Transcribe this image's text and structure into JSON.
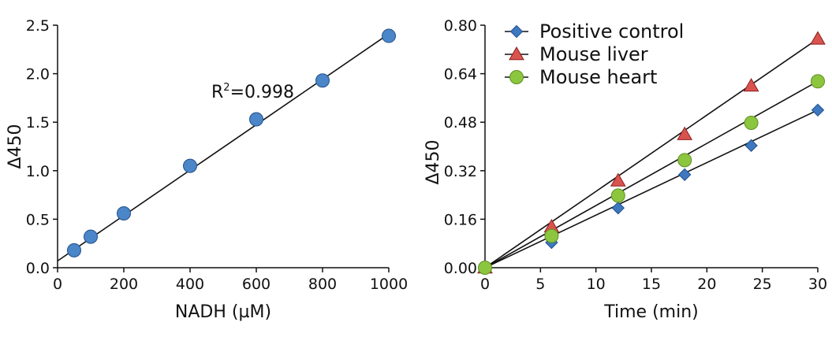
{
  "chart_data": [
    {
      "type": "scatter",
      "xlabel": "NADH (µM)",
      "ylabel": "Δ450",
      "xlim": [
        0,
        1000
      ],
      "ylim": [
        0,
        2.5
      ],
      "xticks": [
        0,
        200,
        400,
        600,
        800,
        1000
      ],
      "yticks": [
        0.0,
        0.5,
        1.0,
        1.5,
        2.0,
        2.5
      ],
      "xtick_labels": [
        "0",
        "200",
        "400",
        "600",
        "800",
        "1000"
      ],
      "ytick_labels": [
        "0.0",
        "0.5",
        "1.0",
        "1.5",
        "2.0",
        "2.5"
      ],
      "points": [
        {
          "x": 50,
          "y": 0.18
        },
        {
          "x": 100,
          "y": 0.32
        },
        {
          "x": 200,
          "y": 0.56
        },
        {
          "x": 400,
          "y": 1.05
        },
        {
          "x": 600,
          "y": 1.53
        },
        {
          "x": 800,
          "y": 1.93
        },
        {
          "x": 1000,
          "y": 2.39
        }
      ],
      "fit": {
        "intercept": 0.07,
        "slope": 0.00234
      },
      "annotation": {
        "prefix": "R",
        "sup": "2",
        "suffix": "=0.998"
      },
      "marker_color": "#4a86c8",
      "marker_edge": "#24508a"
    },
    {
      "type": "line",
      "xlabel": "Time (min)",
      "ylabel": "Δ450",
      "xlim": [
        0,
        30
      ],
      "ylim": [
        0,
        0.8
      ],
      "xticks": [
        0,
        5,
        10,
        15,
        20,
        25,
        30
      ],
      "yticks": [
        0.0,
        0.16,
        0.32,
        0.48,
        0.64,
        0.8
      ],
      "xtick_labels": [
        "0",
        "5",
        "10",
        "15",
        "20",
        "25",
        "30"
      ],
      "ytick_labels": [
        "0.00",
        "0.16",
        "0.32",
        "0.48",
        "0.64",
        "0.80"
      ],
      "x": [
        0,
        6,
        12,
        18,
        24,
        30
      ],
      "legend_position": "top-left",
      "series": [
        {
          "name": "Positive control",
          "marker": "diamond",
          "color": "#3d78c0",
          "edge": "#1f4f8a",
          "values": [
            0.0,
            0.083,
            0.197,
            0.307,
            0.403,
            0.52
          ]
        },
        {
          "name": "Mouse liver",
          "marker": "triangle",
          "color": "#d9534f",
          "edge": "#8c1e1a",
          "values": [
            0.0,
            0.135,
            0.287,
            0.44,
            0.6,
            0.755
          ]
        },
        {
          "name": "Mouse heart",
          "marker": "circle",
          "color": "#8cc63f",
          "edge": "#5e8f22",
          "values": [
            0.0,
            0.105,
            0.238,
            0.355,
            0.478,
            0.615
          ]
        }
      ]
    }
  ]
}
